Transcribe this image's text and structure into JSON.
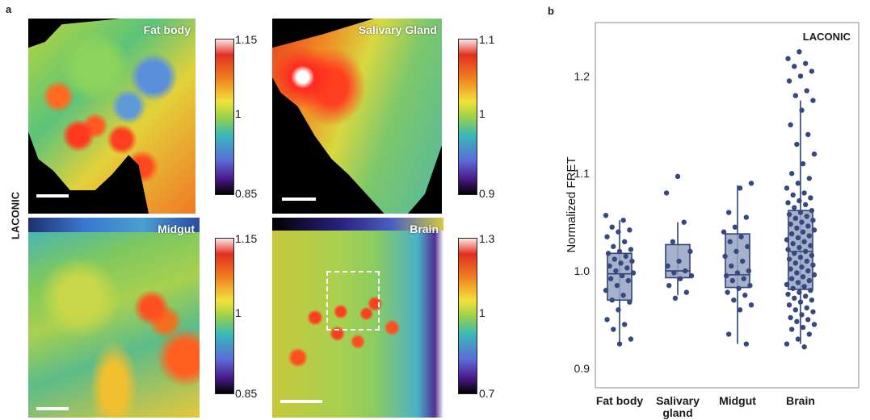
{
  "panel_a": {
    "letter": "a",
    "side_label": "LACONIC",
    "images": [
      {
        "title": "Fat body",
        "cb_max": "1.15",
        "cb_mid": "1",
        "cb_min": "0.85"
      },
      {
        "title": "Salivary Gland",
        "cb_max": "1.1",
        "cb_mid": "1",
        "cb_min": "0.9"
      },
      {
        "title": "Midgut",
        "cb_max": "1.15",
        "cb_mid": "1",
        "cb_min": "0.85"
      },
      {
        "title": "Brain",
        "cb_max": "1.3",
        "cb_mid": "1",
        "cb_min": "0.7"
      }
    ]
  },
  "panel_b": {
    "letter": "b"
  },
  "colors": {
    "box_fill": "#98a3c2",
    "point": "#36497e",
    "line": "#2f437a"
  },
  "chart_data": {
    "type": "box",
    "title": "LACONIC",
    "ylabel": "Normalized FRET",
    "ylim": [
      0.88,
      1.255
    ],
    "yticks": [
      0.9,
      1.0,
      1.1,
      1.2
    ],
    "yticklabels": [
      "0.9",
      "1.0",
      "1.1",
      "1.2"
    ],
    "categories": [
      "Fat body",
      "Salivary gland",
      "Midgut",
      "Brain"
    ],
    "boxes": [
      {
        "whisker_low": 0.925,
        "q1": 0.97,
        "median": 0.997,
        "q3": 1.018,
        "whisker_high": 1.052
      },
      {
        "whisker_low": 0.975,
        "q1": 0.993,
        "median": 1.0,
        "q3": 1.027,
        "whisker_high": 1.05
      },
      {
        "whisker_low": 0.925,
        "q1": 0.983,
        "median": 0.996,
        "q3": 1.038,
        "whisker_high": 1.088
      },
      {
        "whisker_low": 0.925,
        "q1": 0.981,
        "median": 1.02,
        "q3": 1.062,
        "whisker_high": 1.175
      }
    ],
    "points": [
      [
        1.057,
        1.052,
        1.045,
        1.042,
        1.04,
        1.035,
        1.03,
        1.025,
        1.022,
        1.02,
        1.018,
        1.015,
        1.012,
        1.01,
        1.008,
        1.005,
        1.003,
        1.0,
        0.998,
        0.995,
        0.992,
        0.99,
        0.985,
        0.98,
        0.975,
        0.97,
        0.968,
        0.96,
        0.95,
        0.945,
        0.94,
        0.93,
        0.925
      ],
      [
        1.097,
        1.08,
        1.05,
        1.03,
        1.02,
        1.01,
        1.005,
        1.0,
        0.998,
        0.995,
        0.992,
        0.985,
        0.978,
        0.972
      ],
      [
        1.09,
        1.085,
        1.06,
        1.055,
        1.045,
        1.04,
        1.035,
        1.03,
        1.025,
        1.02,
        1.015,
        1.01,
        1.005,
        1.0,
        0.998,
        0.995,
        0.992,
        0.99,
        0.985,
        0.982,
        0.978,
        0.975,
        0.97,
        0.965,
        0.96,
        0.935,
        0.925
      ],
      [
        1.225,
        1.218,
        1.213,
        1.21,
        1.205,
        1.2,
        1.195,
        1.185,
        1.18,
        1.175,
        1.165,
        1.15,
        1.14,
        1.13,
        1.12,
        1.11,
        1.1,
        1.095,
        1.09,
        1.085,
        1.08,
        1.078,
        1.075,
        1.072,
        1.07,
        1.068,
        1.065,
        1.062,
        1.06,
        1.058,
        1.056,
        1.054,
        1.052,
        1.05,
        1.048,
        1.046,
        1.044,
        1.042,
        1.04,
        1.038,
        1.036,
        1.034,
        1.032,
        1.03,
        1.028,
        1.026,
        1.024,
        1.022,
        1.02,
        1.018,
        1.016,
        1.014,
        1.012,
        1.01,
        1.008,
        1.006,
        1.004,
        1.002,
        1.0,
        0.998,
        0.996,
        0.994,
        0.992,
        0.99,
        0.988,
        0.986,
        0.984,
        0.982,
        0.98,
        0.978,
        0.976,
        0.974,
        0.972,
        0.97,
        0.968,
        0.965,
        0.962,
        0.96,
        0.958,
        0.955,
        0.952,
        0.95,
        0.948,
        0.945,
        0.942,
        0.94,
        0.935,
        0.93,
        0.925,
        0.922
      ]
    ]
  }
}
